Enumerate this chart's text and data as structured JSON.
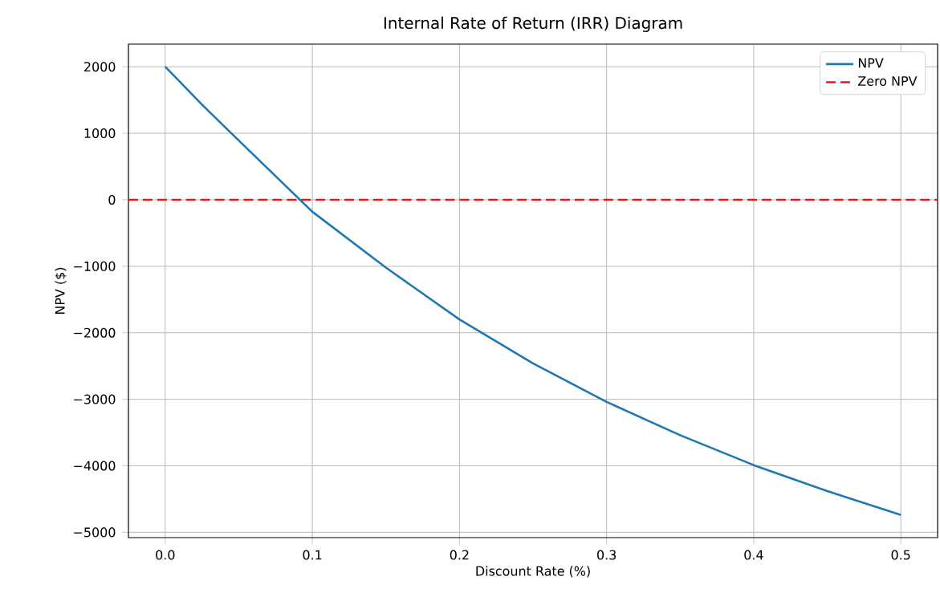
{
  "chart_data": {
    "type": "line",
    "title": "Internal Rate of Return (IRR) Diagram",
    "xlabel": "Discount Rate (%)",
    "ylabel": "NPV ($)",
    "x": [
      0,
      0.025,
      0.05,
      0.1,
      0.15,
      0.2,
      0.25,
      0.3,
      0.35,
      0.4,
      0.45,
      0.5
    ],
    "series": [
      {
        "name": "NPV",
        "color": "#1f77b4",
        "values": [
          2000,
          1430,
          890,
          -180,
          -1020,
          -1800,
          -2460,
          -3040,
          -3540,
          -3990,
          -4380,
          -4740
        ]
      }
    ],
    "ref_lines": [
      {
        "axis": "y",
        "value": 0,
        "label": "Zero NPV",
        "color": "#e31a1c",
        "line_style": "dashed"
      }
    ],
    "xlim": [
      -0.025,
      0.525
    ],
    "ylim": [
      -5080,
      2340
    ],
    "xticks": [
      {
        "value": 0,
        "label": "0.0"
      },
      0.1,
      0.2,
      0.3,
      0.4,
      0.5
    ],
    "yticks": [
      {
        "value": -5000,
        "label": "−5000"
      },
      {
        "value": -4000,
        "label": "−4000"
      },
      {
        "value": -3000,
        "label": "−3000"
      },
      {
        "value": -2000,
        "label": "−2000"
      },
      {
        "value": -1000,
        "label": "−1000"
      },
      0,
      1000,
      2000
    ],
    "grid": true,
    "legend": "top right",
    "marker": "none",
    "line_style": "solid"
  }
}
